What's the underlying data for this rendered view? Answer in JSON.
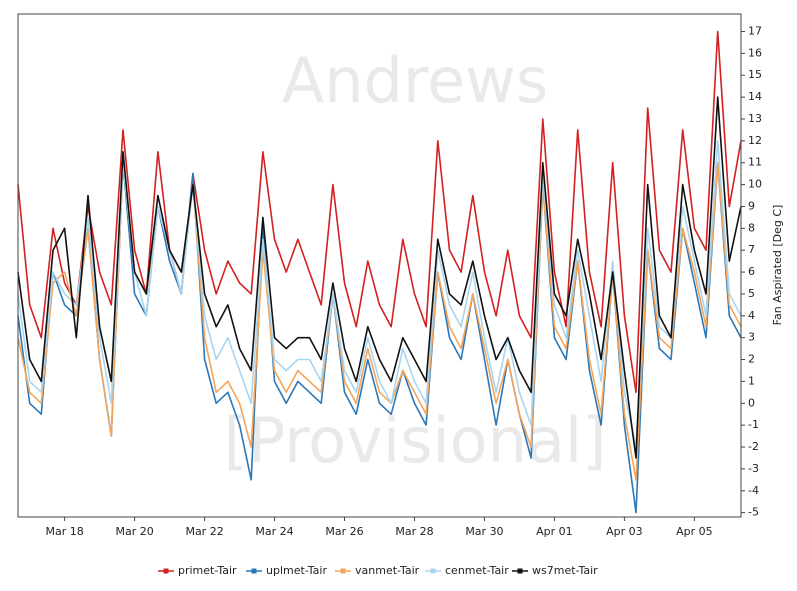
{
  "chart_data": {
    "type": "line",
    "annotations": [
      "Andrews",
      "[Provisional]"
    ],
    "y_label": "Fan Aspirated  [Deg C]",
    "categories": [
      null,
      null,
      null,
      null,
      "Mar 18",
      null,
      null,
      null,
      null,
      null,
      "Mar 20",
      null,
      null,
      null,
      null,
      null,
      "Mar 22",
      null,
      null,
      null,
      null,
      null,
      "Mar 24",
      null,
      null,
      null,
      null,
      null,
      "Mar 26",
      null,
      null,
      null,
      null,
      null,
      "Mar 28",
      null,
      null,
      null,
      null,
      null,
      "Mar 30",
      null,
      null,
      null,
      null,
      null,
      "Apr 01",
      null,
      null,
      null,
      null,
      null,
      "Apr 03",
      null,
      null,
      null,
      null,
      null,
      "Apr 05",
      null,
      null,
      null,
      null
    ],
    "series": [
      {
        "name": "primet-Tair",
        "color": "#d42020",
        "values": [
          10,
          4.5,
          3,
          8,
          5.5,
          4.5,
          9,
          6,
          4.5,
          12.5,
          7,
          5,
          11.5,
          7,
          5,
          10.5,
          7,
          5,
          6.5,
          5.5,
          5,
          11.5,
          7.5,
          6,
          7.5,
          6,
          4.5,
          10,
          5.5,
          3.5,
          6.5,
          4.5,
          3.5,
          7.5,
          5,
          3.5,
          12,
          7,
          6,
          9.5,
          6,
          4,
          7,
          4,
          3,
          13,
          6,
          3.5,
          12.5,
          6,
          3.5,
          11,
          4,
          0.5,
          13.5,
          7,
          6,
          12.5,
          8,
          7,
          17,
          9,
          12
        ]
      },
      {
        "name": "uplmet-Tair",
        "color": "#2a78b8",
        "values": [
          4,
          0,
          -0.5,
          6,
          4.5,
          4,
          8,
          2,
          -1.5,
          11,
          5,
          4,
          9,
          6.5,
          5,
          10.5,
          2,
          0,
          0.5,
          -1,
          -3.5,
          8,
          1,
          0,
          1,
          0.5,
          0,
          5,
          0.5,
          -0.5,
          2,
          0,
          -0.5,
          1.5,
          0,
          -1,
          6,
          3,
          2,
          5,
          2,
          -1,
          2,
          -0.5,
          -2.5,
          10,
          3,
          2,
          6.5,
          1.5,
          -1,
          6,
          -1,
          -5,
          7,
          2.5,
          2,
          8,
          5.5,
          3,
          11,
          4,
          3
        ]
      },
      {
        "name": "vanmet-Tair",
        "color": "#f5a55a",
        "values": [
          3,
          0.5,
          0,
          5.5,
          6,
          4,
          8,
          2,
          -1.5,
          11,
          6,
          5,
          9,
          7,
          6,
          10,
          3,
          0.5,
          1,
          0,
          -2,
          7,
          1.5,
          0.5,
          1.5,
          1,
          0.5,
          5,
          1,
          0,
          2.5,
          0.5,
          0,
          1.5,
          0.5,
          -0.5,
          6,
          3.5,
          2.5,
          5,
          2.5,
          0,
          2,
          -0.5,
          -2,
          10,
          3.5,
          2.5,
          6.5,
          2,
          -0.5,
          6,
          -0.5,
          -3.5,
          7,
          3,
          2.5,
          8,
          6,
          3.5,
          11,
          4.5,
          3.5
        ]
      },
      {
        "name": "cenmet-Tair",
        "color": "#a8d5f0",
        "values": [
          5,
          1,
          0.5,
          6,
          5,
          4.5,
          8.5,
          3,
          0,
          11,
          6,
          4,
          9,
          7,
          5,
          10,
          4,
          2,
          3,
          1.5,
          0,
          7.5,
          2,
          1.5,
          2,
          2,
          1,
          5,
          1.5,
          0.5,
          3,
          1,
          0,
          2.5,
          1,
          0,
          7,
          4.5,
          3.5,
          6,
          3,
          0.5,
          3,
          0.5,
          -1,
          10.5,
          4.5,
          3,
          7,
          4,
          1,
          6.5,
          0.5,
          -2,
          8,
          3.5,
          3,
          9,
          6.5,
          4,
          12,
          5,
          4
        ]
      },
      {
        "name": "ws7met-Tair",
        "color": "#111111",
        "values": [
          6,
          2,
          1,
          7,
          8,
          3,
          9.5,
          3.5,
          1,
          11.5,
          6,
          5,
          9.5,
          7,
          6,
          10,
          5,
          3.5,
          4.5,
          2.5,
          1.5,
          8.5,
          3,
          2.5,
          3,
          3,
          2,
          5.5,
          2.5,
          1,
          3.5,
          2,
          1,
          3,
          2,
          1,
          7.5,
          5,
          4.5,
          6.5,
          4,
          2,
          3,
          1.5,
          0.5,
          11,
          5,
          4,
          7.5,
          5,
          2,
          6,
          1.5,
          -2.5,
          10,
          4,
          3,
          10,
          7,
          5,
          14,
          6.5,
          9
        ]
      }
    ],
    "ylim": [
      -5.2,
      17.8
    ],
    "yticks": [
      -5,
      -4,
      -3,
      -2,
      -1,
      0,
      1,
      2,
      3,
      4,
      5,
      6,
      7,
      8,
      9,
      10,
      11,
      12,
      13,
      14,
      15,
      16,
      17
    ],
    "legend": "bottom"
  }
}
